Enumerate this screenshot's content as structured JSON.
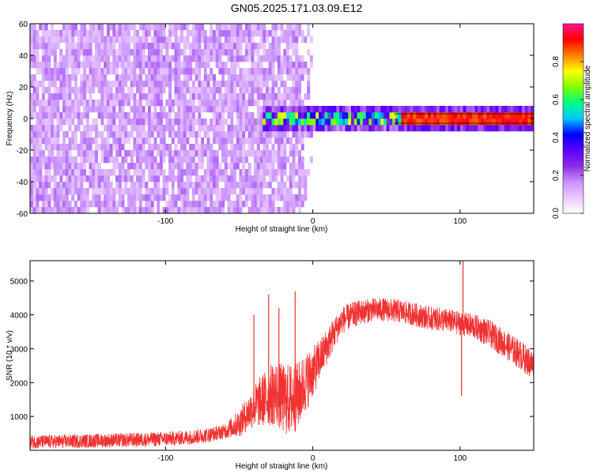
{
  "title": "GN05.2025.171.03.09.E12",
  "chart_data": [
    {
      "type": "heatmap",
      "xlabel": "Height of straight line (km)",
      "ylabel": "Frequency (Hz)",
      "xlim": [
        -192,
        150
      ],
      "ylim": [
        -60,
        60
      ],
      "x_ticks": [
        -100,
        0,
        100
      ],
      "y_ticks": [
        -60,
        -40,
        -20,
        0,
        20,
        40,
        60
      ],
      "colorbar": {
        "label": "Normalized spectral amplitude",
        "range": [
          0,
          1
        ],
        "ticks": [
          0.0,
          0.2,
          0.4,
          0.6,
          0.8
        ],
        "colors": [
          "#ffffff",
          "#e9c8ff",
          "#c890ff",
          "#8a2be2",
          "#5a00ff",
          "#0000ff",
          "#00c8ff",
          "#00ff80",
          "#80ff00",
          "#ffff00",
          "#ff8000",
          "#ff0000",
          "#ff1493"
        ]
      },
      "noise_extent_km": 0,
      "signal_band_hz": [
        -3,
        3
      ],
      "signal_start_km": -35
    },
    {
      "type": "line",
      "xlabel": "Height of straight line (km)",
      "ylabel": "SNR (10 * v/v)",
      "xlim": [
        -192,
        150
      ],
      "ylim": [
        0,
        5600
      ],
      "x_ticks": [
        -100,
        0,
        100
      ],
      "y_ticks": [
        1000,
        2000,
        3000,
        4000,
        5000
      ],
      "line_color": "#f03232",
      "envelope": {
        "x": [
          -192,
          -170,
          -150,
          -130,
          -110,
          -90,
          -80,
          -70,
          -60,
          -50,
          -40,
          -30,
          -25,
          -20,
          -15,
          -10,
          -5,
          0,
          5,
          10,
          15,
          20,
          30,
          40,
          50,
          60,
          70,
          80,
          90,
          95,
          100,
          105,
          110,
          120,
          130,
          140,
          150
        ],
        "y": [
          250,
          260,
          280,
          300,
          320,
          360,
          400,
          460,
          560,
          800,
          1300,
          1600,
          1700,
          1500,
          1500,
          1600,
          2000,
          2300,
          2700,
          3100,
          3500,
          3850,
          4050,
          4150,
          4150,
          4100,
          4000,
          3900,
          3850,
          3800,
          3750,
          3700,
          3650,
          3450,
          3150,
          2850,
          2500
        ]
      },
      "noise_amplitude": {
        "x": [
          -192,
          -60,
          -45,
          -30,
          -15,
          -5,
          5,
          20,
          40,
          60,
          80,
          100,
          120,
          150
        ],
        "y": [
          200,
          220,
          500,
          900,
          1100,
          900,
          600,
          400,
          350,
          350,
          350,
          350,
          400,
          450
        ]
      },
      "spikes": [
        {
          "x": -40,
          "y": 4000
        },
        {
          "x": -30,
          "y": 4600
        },
        {
          "x": -23,
          "y": 4200
        },
        {
          "x": -12,
          "y": 4700
        },
        {
          "x": 102,
          "y": 5600
        },
        {
          "x": 101,
          "y": 1600
        }
      ]
    }
  ]
}
